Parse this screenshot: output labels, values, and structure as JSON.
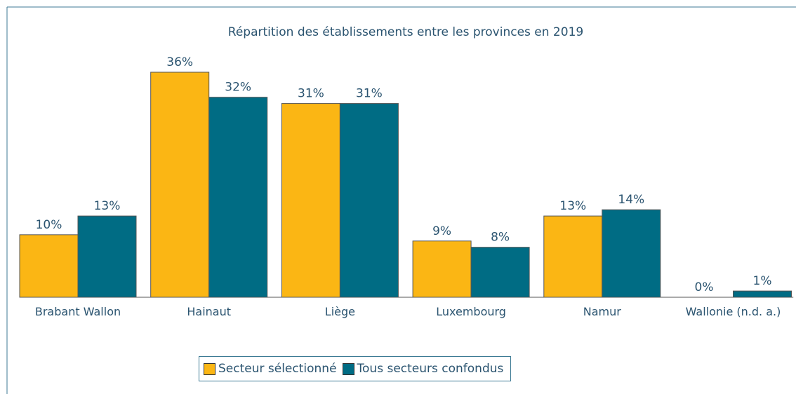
{
  "chart_data": {
    "type": "bar",
    "title": "Répartition des établissements entre les provinces en 2019",
    "categories": [
      "Brabant Wallon",
      "Hainaut",
      "Liège",
      "Luxembourg",
      "Namur",
      "Wallonie (n.d. a.)"
    ],
    "series": [
      {
        "name": "Secteur sélectionné",
        "color": "#fbb614",
        "values": [
          10,
          36,
          31,
          9,
          13,
          0
        ],
        "value_labels": [
          "10%",
          "36%",
          "31%",
          "9%",
          "13%",
          "0%"
        ]
      },
      {
        "name": "Tous secteurs confondus",
        "color": "#006c84",
        "values": [
          13,
          32,
          31,
          8,
          14,
          1
        ],
        "value_labels": [
          "13%",
          "32%",
          "31%",
          "8%",
          "14%",
          "1%"
        ]
      }
    ],
    "ylim": [
      0,
      36
    ]
  }
}
